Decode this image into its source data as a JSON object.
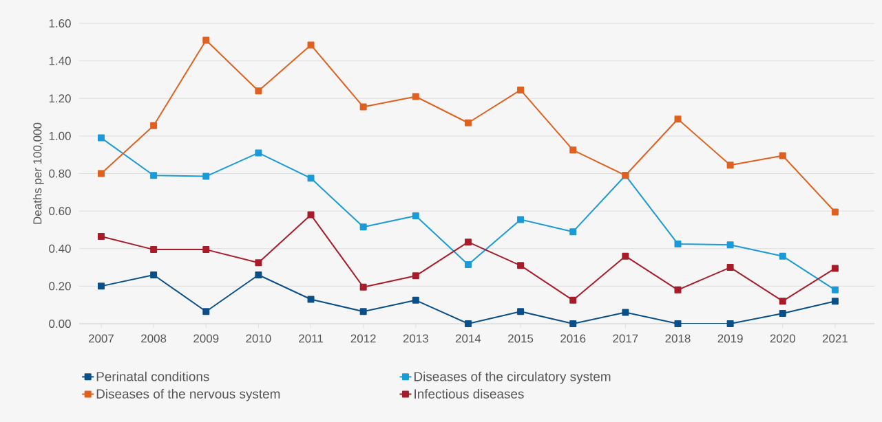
{
  "chart_data": {
    "type": "line",
    "ylabel": "Deaths per 100,000",
    "categories": [
      "2007",
      "2008",
      "2009",
      "2010",
      "2011",
      "2012",
      "2013",
      "2014",
      "2015",
      "2016",
      "2017",
      "2018",
      "2019",
      "2020",
      "2021"
    ],
    "series": [
      {
        "name": "Perinatal conditions",
        "color": "#0b4f88",
        "values": [
          0.2,
          0.26,
          0.065,
          0.26,
          0.13,
          0.065,
          0.125,
          0,
          0.065,
          0,
          0.06,
          0,
          0,
          0.055,
          0.12
        ]
      },
      {
        "name": "Diseases of the circulatory system",
        "color": "#1a9ad6",
        "values": [
          0.99,
          0.79,
          0.785,
          0.91,
          0.775,
          0.515,
          0.575,
          0.315,
          0.555,
          0.49,
          0.79,
          0.425,
          0.42,
          0.36,
          0.18
        ]
      },
      {
        "name": "Diseases of the nervous system",
        "color": "#e0601f",
        "values": [
          0.8,
          1.055,
          1.51,
          1.24,
          1.485,
          1.155,
          1.21,
          1.07,
          1.245,
          0.925,
          0.79,
          1.09,
          0.845,
          0.895,
          0.595
        ]
      },
      {
        "name": "Infectious diseases",
        "color": "#a81c2a",
        "values": [
          0.465,
          0.395,
          0.395,
          0.325,
          0.58,
          0.195,
          0.255,
          0.435,
          0.31,
          0.125,
          0.36,
          0.18,
          0.3,
          0.12,
          0.295
        ]
      }
    ],
    "ylim": [
      0,
      1.6
    ],
    "yticks": [
      {
        "value": 0,
        "label": "0.00"
      },
      {
        "value": 0.2,
        "label": "0.20"
      },
      {
        "value": 0.4,
        "label": "0.40"
      },
      {
        "value": 0.6,
        "label": "0.60"
      },
      {
        "value": 0.8,
        "label": "0.80"
      },
      {
        "value": 1.0,
        "label": "1.00"
      },
      {
        "value": 1.2,
        "label": "1.20"
      },
      {
        "value": 1.4,
        "label": "1.40"
      },
      {
        "value": 1.6,
        "label": "1.60"
      }
    ],
    "grid": "y",
    "legend": "bottom",
    "marker": "square",
    "line_style": "solid"
  }
}
